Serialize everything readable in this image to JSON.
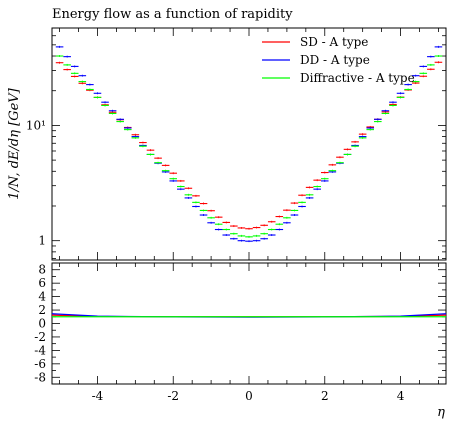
{
  "chart_data": [
    {
      "type": "line",
      "title": "Energy flow as a function of rapidity",
      "ylabel": "1/N, dE/dη [GeV]",
      "xlabel": "",
      "xlim": [
        -5.2,
        5.2
      ],
      "ylim": [
        0.68,
        70
      ],
      "yscale": "log",
      "grid": false,
      "legend_position": "top-right",
      "y_ticks": [
        {
          "value": 1,
          "label": "1"
        },
        {
          "value": 10,
          "label": "10¹"
        }
      ],
      "x": [
        -5.0,
        -4.8,
        -4.6,
        -4.4,
        -4.2,
        -4.0,
        -3.8,
        -3.6,
        -3.4,
        -3.2,
        -3.0,
        -2.8,
        -2.6,
        -2.4,
        -2.2,
        -2.0,
        -1.8,
        -1.6,
        -1.4,
        -1.2,
        -1.0,
        -0.8,
        -0.6,
        -0.4,
        -0.2,
        0.0,
        0.2,
        0.4,
        0.6,
        0.8,
        1.0,
        1.2,
        1.4,
        1.6,
        1.8,
        2.0,
        2.2,
        2.4,
        2.6,
        2.8,
        3.0,
        3.2,
        3.4,
        3.6,
        3.8,
        4.0,
        4.2,
        4.4,
        4.6,
        4.8,
        5.0
      ],
      "series": [
        {
          "name": "SD - A type",
          "color": "#ff0000",
          "values": [
            35.0,
            30.5,
            26.6,
            23.2,
            20.2,
            17.5,
            15.1,
            13.0,
            11.2,
            9.6,
            8.3,
            7.1,
            6.1,
            5.2,
            4.5,
            3.85,
            3.3,
            2.85,
            2.45,
            2.1,
            1.82,
            1.6,
            1.44,
            1.34,
            1.29,
            1.27,
            1.3,
            1.36,
            1.46,
            1.62,
            1.84,
            2.12,
            2.48,
            2.9,
            3.35,
            3.9,
            4.55,
            5.3,
            6.2,
            7.2,
            8.4,
            9.7,
            11.3,
            13.1,
            15.2,
            17.6,
            20.3,
            23.3,
            26.7,
            30.7,
            35.3
          ]
        },
        {
          "name": "DD - A type",
          "color": "#0000ff",
          "values": [
            48.0,
            39.5,
            32.5,
            27.0,
            22.6,
            19.0,
            15.9,
            13.4,
            11.3,
            9.5,
            8.0,
            6.7,
            5.6,
            4.7,
            3.95,
            3.3,
            2.8,
            2.35,
            1.98,
            1.67,
            1.43,
            1.25,
            1.12,
            1.04,
            1.0,
            0.99,
            1.0,
            1.04,
            1.12,
            1.25,
            1.43,
            1.67,
            1.98,
            2.35,
            2.8,
            3.3,
            3.95,
            4.7,
            5.6,
            6.7,
            8.0,
            9.5,
            11.3,
            13.4,
            15.9,
            19.0,
            22.6,
            27.0,
            32.5,
            39.5,
            48.0
          ]
        },
        {
          "name": "Diffractive - A type",
          "color": "#00ff00",
          "values": [
            40.0,
            33.5,
            28.3,
            24.0,
            20.5,
            17.5,
            14.9,
            12.7,
            10.8,
            9.2,
            7.8,
            6.6,
            5.6,
            4.75,
            4.05,
            3.45,
            2.95,
            2.5,
            2.15,
            1.83,
            1.58,
            1.39,
            1.25,
            1.15,
            1.1,
            1.08,
            1.1,
            1.15,
            1.25,
            1.39,
            1.58,
            1.83,
            2.15,
            2.5,
            2.95,
            3.45,
            4.05,
            4.75,
            5.6,
            6.6,
            7.8,
            9.2,
            10.8,
            12.7,
            14.9,
            17.5,
            20.5,
            24.0,
            28.3,
            33.5,
            40.0
          ]
        }
      ]
    },
    {
      "type": "line",
      "title": "",
      "xlabel": "η",
      "ylabel": "",
      "xlim": [
        -5.2,
        5.2
      ],
      "ylim": [
        -9,
        9
      ],
      "grid": false,
      "x_ticks": [
        {
          "value": -4,
          "label": "-4"
        },
        {
          "value": -2,
          "label": "-2"
        },
        {
          "value": 0,
          "label": "0"
        },
        {
          "value": 2,
          "label": "2"
        },
        {
          "value": 4,
          "label": "4"
        }
      ],
      "y_ticks": [
        {
          "value": 8,
          "label": "8"
        },
        {
          "value": 6,
          "label": "6"
        },
        {
          "value": 4,
          "label": "4"
        },
        {
          "value": 2,
          "label": "2"
        },
        {
          "value": 0,
          "label": "0"
        },
        {
          "value": -2,
          "label": "-2"
        },
        {
          "value": -4,
          "label": "-4"
        },
        {
          "value": -6,
          "label": "-6"
        },
        {
          "value": -8,
          "label": "-8"
        }
      ],
      "series": [
        {
          "color": "#ff0000",
          "x": [
            -5.2,
            -4.0,
            -2.0,
            0.0,
            2.0,
            4.0,
            5.2
          ],
          "values": [
            1.25,
            1.05,
            1.0,
            1.0,
            1.0,
            1.05,
            1.25
          ]
        },
        {
          "color": "#0000ff",
          "x": [
            -5.2,
            -4.0,
            -2.0,
            0.0,
            2.0,
            4.0,
            5.2
          ],
          "values": [
            1.45,
            1.1,
            0.98,
            0.95,
            0.98,
            1.1,
            1.45
          ]
        },
        {
          "color": "#00ff00",
          "x": [
            -5.2,
            -4.0,
            -2.0,
            0.0,
            2.0,
            4.0,
            5.2
          ],
          "values": [
            1.0,
            1.0,
            1.0,
            1.0,
            1.0,
            1.0,
            1.0
          ]
        }
      ]
    }
  ]
}
